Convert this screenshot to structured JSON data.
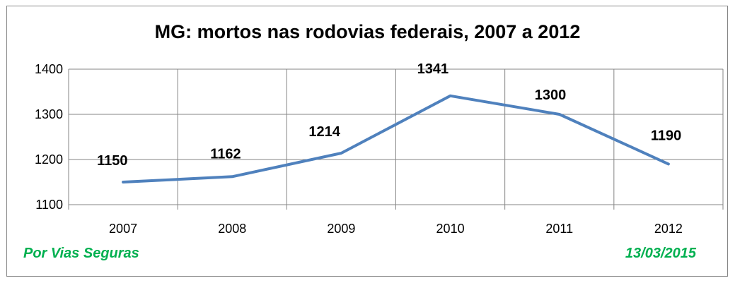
{
  "chart_data": {
    "type": "line",
    "title": "MG: mortos nas rodovias federais, 2007 a 2012",
    "categories": [
      "2007",
      "2008",
      "2009",
      "2010",
      "2011",
      "2012"
    ],
    "series": [
      {
        "values": [
          1150,
          1162,
          1214,
          1341,
          1300,
          1190
        ]
      }
    ],
    "data_labels": [
      "1150",
      "1162",
      "1214",
      "1341",
      "1300",
      "1190"
    ],
    "ylim": [
      1100,
      1400
    ],
    "yticks": [
      "1100",
      "1200",
      "1300",
      "1400"
    ],
    "grid": true,
    "line_color": "#4f81bd"
  },
  "footer": {
    "source": "Por Vias Seguras",
    "date": "13/03/2015",
    "color": "#00b050"
  }
}
